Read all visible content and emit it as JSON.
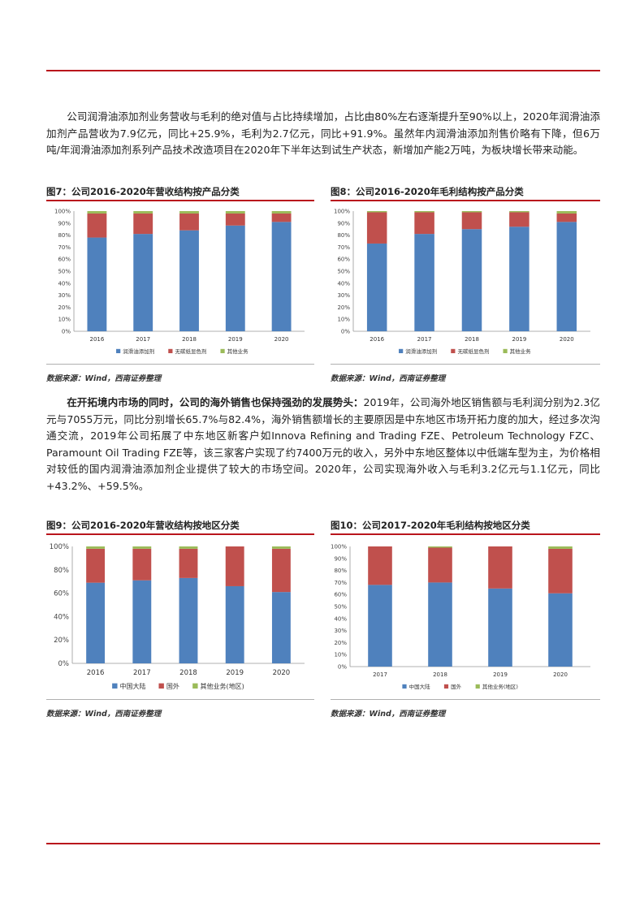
{
  "paragraphs": {
    "p1": "公司润滑油添加剂业务营收与毛利的绝对值与占比持续增加，占比由80%左右逐渐提升至90%以上，2020年润滑油添加剂产品营收为7.9亿元，同比+25.9%，毛利为2.7亿元，同比+91.9%。虽然年内润滑油添加剂售价略有下降，但6万吨/年润滑油添加剂系列产品技术改造项目在2020年下半年达到试生产状态，新增加产能2万吨，为板块增长带来动能。",
    "p2_lead": "在开拓境内市场的同时，公司的海外销售也保持强劲的发展势头：",
    "p2_body": "2019年，公司海外地区销售额与毛利润分别为2.3亿元与7055万元，同比分别增长65.7%与82.4%，海外销售额增长的主要原因是中东地区市场开拓力度的加大，经过多次沟通交流，2019年公司拓展了中东地区新客户如Innova Refining and Trading FZE、Petroleum Technology FZC、Paramount Oil Trading FZE等，该三家客户实现了约7400万元的收入，另外中东地区整体以中低端车型为主，为价格相对较低的国内润滑油添加剂企业提供了较大的市场空间。2020年，公司实现海外收入与毛利3.2亿元与1.1亿元，同比+43.2%、+59.5%。"
  },
  "figures": [
    {
      "title": "图7：公司2016-2020年营收结构按产品分类",
      "source": "数据来源：Wind，西南证券整理"
    },
    {
      "title": "图8：公司2016-2020年毛利结构按产品分类",
      "source": "数据来源：Wind，西南证券整理"
    },
    {
      "title": "图9：公司2016-2020年营收结构按地区分类",
      "source": "数据来源：Wind，西南证券整理"
    },
    {
      "title": "图10：公司2017-2020年毛利结构按地区分类",
      "source": "数据来源：Wind，西南证券整理"
    }
  ],
  "colors": {
    "blue": "#4f81bd",
    "red": "#c0504d",
    "green": "#9bbb59",
    "rule": "#b9151c"
  },
  "chart_data": [
    {
      "type": "bar",
      "stacked": true,
      "categories": [
        "2016",
        "2017",
        "2018",
        "2019",
        "2020"
      ],
      "series": [
        {
          "name": "润滑油添加剂",
          "values": [
            78,
            81,
            84,
            88,
            91
          ]
        },
        {
          "name": "无碳纸显色剂",
          "values": [
            20,
            17,
            14,
            10,
            7
          ]
        },
        {
          "name": "其他业务",
          "values": [
            2,
            2,
            2,
            2,
            2
          ]
        }
      ],
      "yticks": [
        "0%",
        "10%",
        "20%",
        "30%",
        "40%",
        "50%",
        "60%",
        "70%",
        "80%",
        "90%",
        "100%"
      ],
      "ylim": [
        0,
        100
      ],
      "legend": "bottom",
      "grid": false
    },
    {
      "type": "bar",
      "stacked": true,
      "categories": [
        "2016",
        "2017",
        "2018",
        "2019",
        "2020"
      ],
      "series": [
        {
          "name": "润滑油添加剂",
          "values": [
            73,
            81,
            85,
            87,
            91
          ]
        },
        {
          "name": "无碳纸显色剂",
          "values": [
            26,
            18,
            14,
            12,
            7
          ]
        },
        {
          "name": "其他业务",
          "values": [
            1,
            1,
            1,
            1,
            2
          ]
        }
      ],
      "yticks": [
        "0%",
        "10%",
        "20%",
        "30%",
        "40%",
        "50%",
        "60%",
        "70%",
        "80%",
        "90%",
        "100%"
      ],
      "ylim": [
        0,
        100
      ],
      "legend": "bottom",
      "grid": false
    },
    {
      "type": "bar",
      "stacked": true,
      "categories": [
        "2016",
        "2017",
        "2018",
        "2019",
        "2020"
      ],
      "series": [
        {
          "name": "中国大陆",
          "values": [
            69,
            71,
            73,
            66,
            61
          ]
        },
        {
          "name": "国外",
          "values": [
            29,
            27,
            25,
            34,
            37
          ]
        },
        {
          "name": "其他业务(地区)",
          "values": [
            2,
            2,
            2,
            0,
            2
          ]
        }
      ],
      "yticks": [
        "0%",
        "20%",
        "40%",
        "60%",
        "80%",
        "100%"
      ],
      "ylim": [
        0,
        100
      ],
      "legend": "bottom",
      "grid": false
    },
    {
      "type": "bar",
      "stacked": true,
      "categories": [
        "2017",
        "2018",
        "2019",
        "2020"
      ],
      "series": [
        {
          "name": "中国大陆",
          "values": [
            68,
            70,
            65,
            61
          ]
        },
        {
          "name": "国外",
          "values": [
            32,
            29,
            35,
            37
          ]
        },
        {
          "name": "其他业务(地区)",
          "values": [
            0,
            1,
            0,
            2
          ]
        }
      ],
      "yticks": [
        "0%",
        "10%",
        "20%",
        "30%",
        "40%",
        "50%",
        "60%",
        "70%",
        "80%",
        "90%",
        "100%"
      ],
      "ylim": [
        0,
        100
      ],
      "legend": "bottom",
      "grid": false
    }
  ]
}
